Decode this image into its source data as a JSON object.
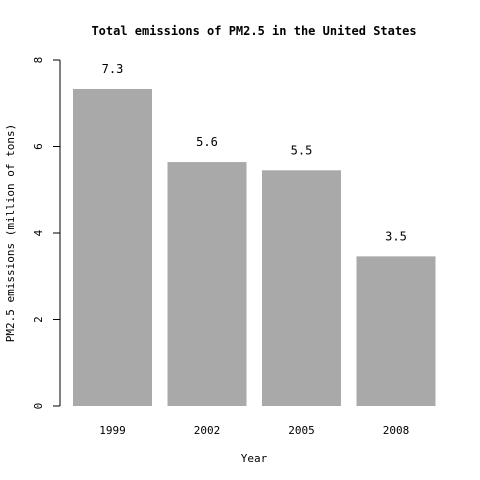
{
  "chart_data": {
    "type": "bar",
    "title": "Total emissions of PM2.5 in the United States",
    "xlabel": "Year",
    "ylabel": "PM2.5 emissions (million of tons)",
    "categories": [
      "1999",
      "2002",
      "2005",
      "2008"
    ],
    "values": [
      7.33,
      5.64,
      5.45,
      3.46
    ],
    "value_labels": [
      "7.3",
      "5.6",
      "5.5",
      "3.5"
    ],
    "yticks": [
      0,
      2,
      4,
      6,
      8
    ],
    "ytick_labels": [
      "0",
      "2",
      "4",
      "6",
      "8"
    ],
    "ylim": [
      0,
      8
    ],
    "bar_color": "#a9a9a9",
    "grid": false
  }
}
